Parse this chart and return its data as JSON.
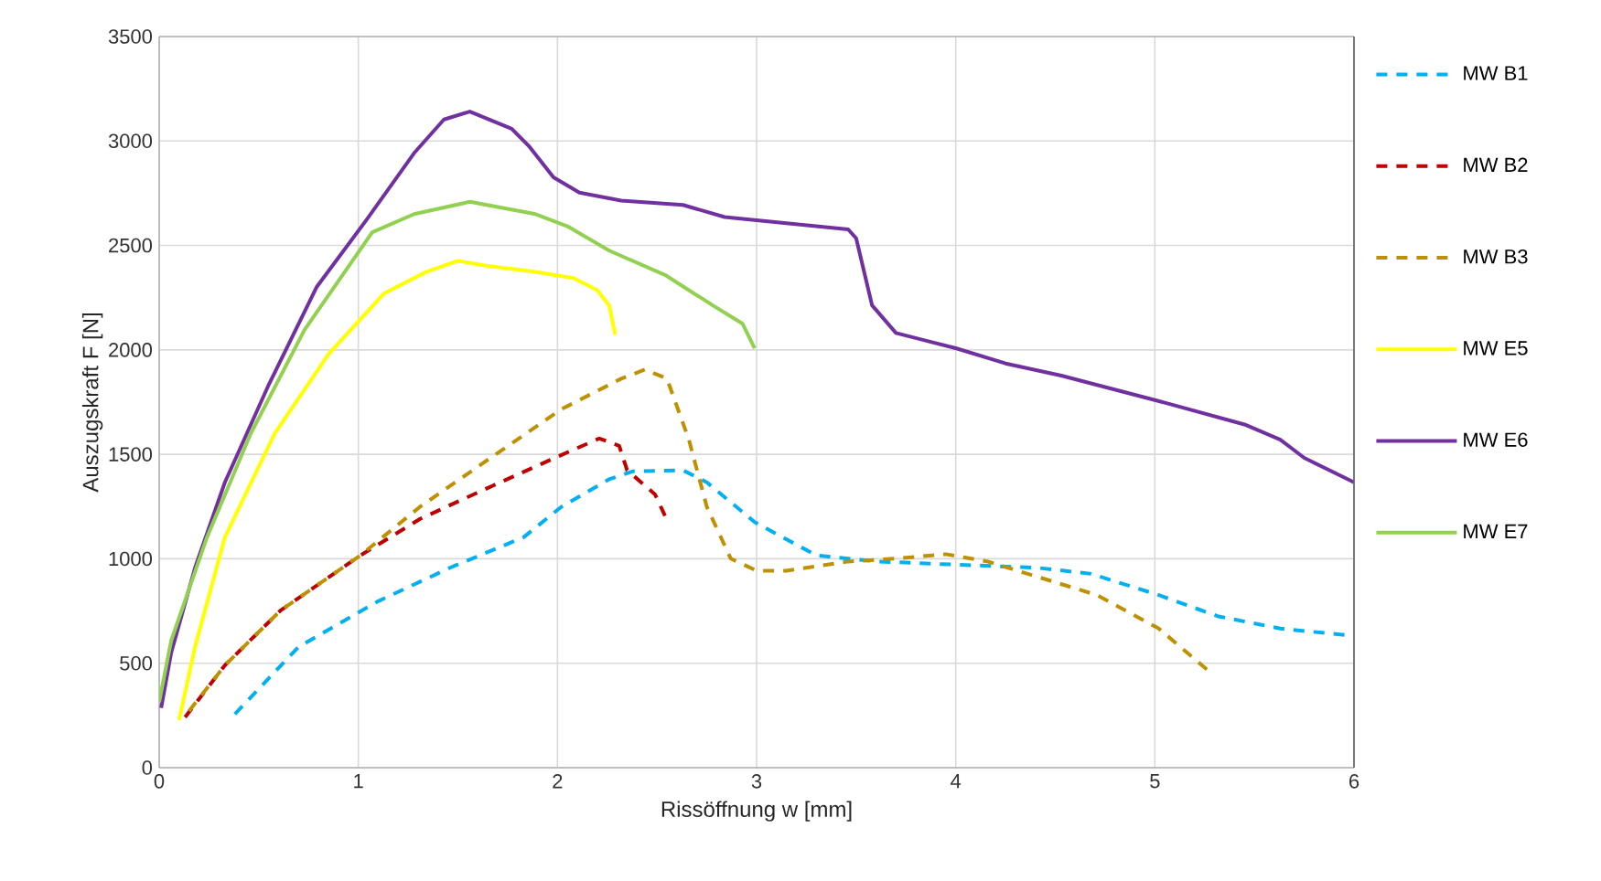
{
  "chart_data": {
    "type": "line",
    "xlabel": "Rissöffnung w [mm]",
    "ylabel": "Auszugskraft F [N]",
    "xlim": [
      0,
      6
    ],
    "ylim": [
      0,
      3500
    ],
    "xticks": [
      0,
      1,
      2,
      3,
      4,
      5,
      6
    ],
    "yticks": [
      0,
      500,
      1000,
      1500,
      2000,
      2500,
      3000,
      3500
    ],
    "grid": true,
    "legend": "right",
    "series": [
      {
        "name": "MW B1",
        "color": "#00b0f0",
        "line_style": "dashed",
        "x": [
          0.38,
          0.7,
          1.1,
          1.46,
          1.83,
          2.02,
          2.26,
          2.38,
          2.63,
          2.75,
          2.99,
          3.3,
          3.61,
          4.0,
          4.41,
          4.68,
          5.02,
          5.32,
          5.63,
          6.0
        ],
        "values": [
          257,
          578,
          797,
          957,
          1103,
          1249,
          1381,
          1419,
          1424,
          1366,
          1176,
          1016,
          987,
          972,
          957,
          928,
          826,
          724,
          666,
          631
        ]
      },
      {
        "name": "MW B2",
        "color": "#c00000",
        "line_style": "dashed",
        "x": [
          0.13,
          0.33,
          0.61,
          1.01,
          1.31,
          1.68,
          2.02,
          2.21,
          2.31,
          2.35,
          2.49,
          2.54
        ],
        "values": [
          242,
          490,
          753,
          1016,
          1191,
          1352,
          1497,
          1576,
          1541,
          1424,
          1308,
          1206
        ]
      },
      {
        "name": "MW B3",
        "color": "#bf9000",
        "line_style": "dashed",
        "x": [
          0.15,
          0.33,
          0.61,
          1.01,
          1.31,
          1.62,
          2.02,
          2.32,
          2.44,
          2.55,
          2.66,
          2.75,
          2.87,
          3.0,
          3.15,
          3.46,
          3.7,
          3.95,
          4.16,
          4.41,
          4.71,
          5.02,
          5.29
        ],
        "values": [
          271,
          490,
          753,
          1016,
          1249,
          1454,
          1716,
          1862,
          1906,
          1862,
          1570,
          1249,
          1001,
          943,
          943,
          987,
          1001,
          1022,
          987,
          914,
          826,
          666,
          447
        ]
      },
      {
        "name": "MW E5",
        "color": "#ffff00",
        "line_style": "solid",
        "x": [
          0.1,
          0.18,
          0.33,
          0.58,
          0.85,
          1.13,
          1.34,
          1.5,
          1.65,
          1.89,
          2.08,
          2.2,
          2.26,
          2.29
        ],
        "values": [
          228,
          578,
          1103,
          1600,
          1979,
          2271,
          2373,
          2426,
          2402,
          2373,
          2344,
          2286,
          2213,
          2072
        ]
      },
      {
        "name": "MW E6",
        "color": "#7030a0",
        "line_style": "solid",
        "x": [
          0.01,
          0.06,
          0.18,
          0.33,
          0.55,
          0.79,
          1.04,
          1.28,
          1.43,
          1.56,
          1.77,
          1.86,
          1.98,
          2.11,
          2.32,
          2.63,
          2.84,
          3.0,
          3.46,
          3.5,
          3.58,
          3.7,
          4.0,
          4.25,
          4.53,
          5.0,
          5.45,
          5.63,
          5.75,
          6.0
        ],
        "values": [
          286,
          549,
          957,
          1366,
          1833,
          2300,
          2621,
          2942,
          3103,
          3141,
          3059,
          2972,
          2826,
          2753,
          2715,
          2694,
          2636,
          2621,
          2577,
          2534,
          2213,
          2081,
          2008,
          1935,
          1877,
          1760,
          1643,
          1570,
          1483,
          1366
        ]
      },
      {
        "name": "MW E7",
        "color": "#92d050",
        "line_style": "solid",
        "x": [
          0,
          0.06,
          0.24,
          0.46,
          0.73,
          1.07,
          1.28,
          1.56,
          1.89,
          2.05,
          2.26,
          2.54,
          2.78,
          2.93,
          2.99
        ],
        "values": [
          315,
          607,
          1103,
          1600,
          2096,
          2563,
          2650,
          2709,
          2650,
          2592,
          2475,
          2359,
          2213,
          2125,
          2008
        ]
      }
    ]
  }
}
